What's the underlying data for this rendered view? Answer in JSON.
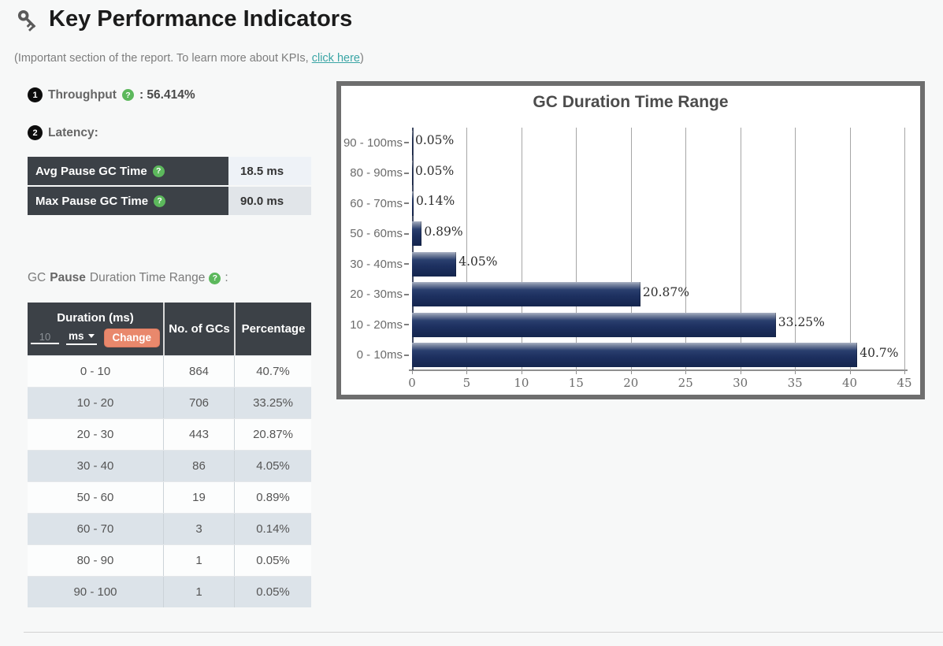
{
  "header": {
    "title": "Key Performance Indicators"
  },
  "icons": {
    "help_glyph": "?"
  },
  "subtitle": {
    "prefix": "(Important section of the report. To learn more about KPIs, ",
    "link_text": "click here",
    "suffix": ")"
  },
  "throughput": {
    "number": "1",
    "label": "Throughput",
    "value": ": 56.414%"
  },
  "latency": {
    "number": "2",
    "label": "Latency:"
  },
  "latency_table": {
    "rows": [
      {
        "label": "Avg Pause GC Time",
        "value": "18.5 ms"
      },
      {
        "label": "Max Pause GC Time",
        "value": "90.0 ms"
      }
    ]
  },
  "gc_pause_heading": {
    "prefix": "GC",
    "bold": "Pause",
    "suffix": "Duration Time Range",
    "colon": ":"
  },
  "duration_table": {
    "col1_title": "Duration (ms)",
    "input_placeholder": "10",
    "unit_selected": "ms",
    "change_label": "Change",
    "col2_title": "No. of GCs",
    "col3_title": "Percentage",
    "rows": [
      [
        "0 - 10",
        "864",
        "40.7%"
      ],
      [
        "10 - 20",
        "706",
        "33.25%"
      ],
      [
        "20 - 30",
        "443",
        "20.87%"
      ],
      [
        "30 - 40",
        "86",
        "4.05%"
      ],
      [
        "50 - 60",
        "19",
        "0.89%"
      ],
      [
        "60 - 70",
        "3",
        "0.14%"
      ],
      [
        "80 - 90",
        "1",
        "0.05%"
      ],
      [
        "90 - 100",
        "1",
        "0.05%"
      ]
    ]
  },
  "chart_data": {
    "type": "bar",
    "orientation": "horizontal",
    "title": "GC Duration Time Range",
    "categories": [
      "90 - 100ms",
      "80 - 90ms",
      "60 - 70ms",
      "50 - 60ms",
      "30 - 40ms",
      "20 - 30ms",
      "10 - 20ms",
      "0 - 10ms"
    ],
    "values": [
      0.05,
      0.05,
      0.14,
      0.89,
      4.05,
      20.87,
      33.25,
      40.7
    ],
    "value_labels": [
      "0.05%",
      "0.05%",
      "0.14%",
      "0.89%",
      "4.05%",
      "20.87%",
      "33.25%",
      "40.7%"
    ],
    "xlim": [
      0,
      45
    ],
    "xticks": [
      0,
      5,
      10,
      15,
      20,
      25,
      30,
      35,
      40,
      45
    ],
    "grid": true,
    "legend": false,
    "bar_color": "#1c2d57"
  },
  "colors": {
    "table-header": "#3c4147",
    "accent-salmon": "#e9886c",
    "link-teal": "#3aa5a5",
    "help-green": "#5cb85c",
    "bar-navy": "#1c2d57",
    "frame-gray": "#6e6e6e"
  }
}
